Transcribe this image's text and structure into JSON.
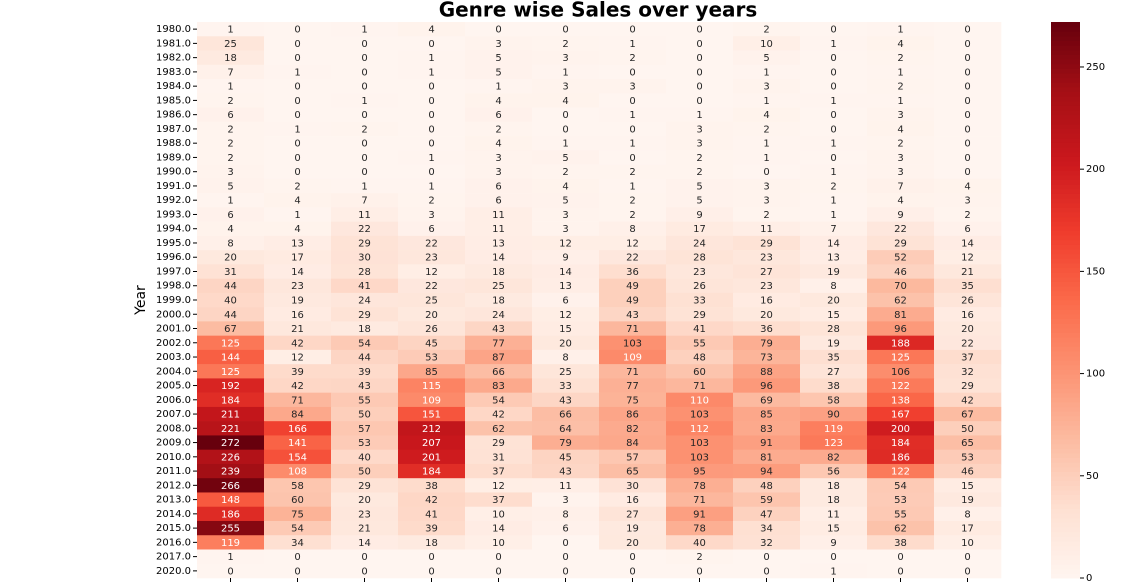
{
  "chart_data": {
    "type": "heatmap",
    "title": "Genre wise Sales over years",
    "ylabel": "Year",
    "categories": [
      null,
      null,
      null,
      null,
      null,
      null,
      null,
      null,
      null,
      null,
      null,
      null
    ],
    "rows": [
      "1980.0",
      "1981.0",
      "1982.0",
      "1983.0",
      "1984.0",
      "1985.0",
      "1986.0",
      "1987.0",
      "1988.0",
      "1989.0",
      "1990.0",
      "1991.0",
      "1992.0",
      "1993.0",
      "1994.0",
      "1995.0",
      "1996.0",
      "1997.0",
      "1998.0",
      "1999.0",
      "2000.0",
      "2001.0",
      "2002.0",
      "2003.0",
      "2004.0",
      "2005.0",
      "2006.0",
      "2007.0",
      "2008.0",
      "2009.0",
      "2010.0",
      "2011.0",
      "2012.0",
      "2013.0",
      "2014.0",
      "2015.0",
      "2016.0",
      "2017.0",
      "2020.0"
    ],
    "values": [
      [
        1,
        0,
        1,
        4,
        0,
        0,
        0,
        0,
        2,
        0,
        1,
        0
      ],
      [
        25,
        0,
        0,
        0,
        3,
        2,
        1,
        0,
        10,
        1,
        4,
        0
      ],
      [
        18,
        0,
        0,
        1,
        5,
        3,
        2,
        0,
        5,
        0,
        2,
        0
      ],
      [
        7,
        1,
        0,
        1,
        5,
        1,
        0,
        0,
        1,
        0,
        1,
        0
      ],
      [
        1,
        0,
        0,
        0,
        1,
        3,
        3,
        0,
        3,
        0,
        2,
        0
      ],
      [
        2,
        0,
        1,
        0,
        4,
        4,
        0,
        0,
        1,
        1,
        1,
        0
      ],
      [
        6,
        0,
        0,
        0,
        6,
        0,
        1,
        1,
        4,
        0,
        3,
        0
      ],
      [
        2,
        1,
        2,
        0,
        2,
        0,
        0,
        3,
        2,
        0,
        4,
        0
      ],
      [
        2,
        0,
        0,
        0,
        4,
        1,
        1,
        3,
        1,
        1,
        2,
        0
      ],
      [
        2,
        0,
        0,
        1,
        3,
        5,
        0,
        2,
        1,
        0,
        3,
        0
      ],
      [
        3,
        0,
        0,
        0,
        3,
        2,
        2,
        2,
        0,
        1,
        3,
        0
      ],
      [
        5,
        2,
        1,
        1,
        6,
        4,
        1,
        5,
        3,
        2,
        7,
        4
      ],
      [
        1,
        4,
        7,
        2,
        6,
        5,
        2,
        5,
        3,
        1,
        4,
        3
      ],
      [
        6,
        1,
        11,
        3,
        11,
        3,
        2,
        9,
        2,
        1,
        9,
        2
      ],
      [
        4,
        4,
        22,
        6,
        11,
        3,
        8,
        17,
        11,
        7,
        22,
        6
      ],
      [
        8,
        13,
        29,
        22,
        13,
        12,
        12,
        24,
        29,
        14,
        29,
        14
      ],
      [
        20,
        17,
        30,
        23,
        14,
        9,
        22,
        28,
        23,
        13,
        52,
        12
      ],
      [
        31,
        14,
        28,
        12,
        18,
        14,
        36,
        23,
        27,
        19,
        46,
        21
      ],
      [
        44,
        23,
        41,
        22,
        25,
        13,
        49,
        26,
        23,
        8,
        70,
        35
      ],
      [
        40,
        19,
        24,
        25,
        18,
        6,
        49,
        33,
        16,
        20,
        62,
        26
      ],
      [
        44,
        16,
        29,
        20,
        24,
        12,
        43,
        29,
        20,
        15,
        81,
        16
      ],
      [
        67,
        21,
        18,
        26,
        43,
        15,
        71,
        41,
        36,
        28,
        96,
        20
      ],
      [
        125,
        42,
        54,
        45,
        77,
        20,
        103,
        55,
        79,
        19,
        188,
        22
      ],
      [
        144,
        12,
        44,
        53,
        87,
        8,
        109,
        48,
        73,
        35,
        125,
        37
      ],
      [
        125,
        39,
        39,
        85,
        66,
        25,
        71,
        60,
        88,
        27,
        106,
        32
      ],
      [
        192,
        42,
        43,
        115,
        83,
        33,
        77,
        71,
        96,
        38,
        122,
        29
      ],
      [
        184,
        71,
        55,
        109,
        54,
        43,
        75,
        110,
        69,
        58,
        138,
        42
      ],
      [
        211,
        84,
        50,
        151,
        42,
        66,
        86,
        103,
        85,
        90,
        167,
        67
      ],
      [
        221,
        166,
        57,
        212,
        62,
        64,
        82,
        112,
        83,
        119,
        200,
        50
      ],
      [
        272,
        141,
        53,
        207,
        29,
        79,
        84,
        103,
        91,
        123,
        184,
        65
      ],
      [
        226,
        154,
        40,
        201,
        31,
        45,
        57,
        103,
        81,
        82,
        186,
        53
      ],
      [
        239,
        108,
        50,
        184,
        37,
        43,
        65,
        95,
        94,
        56,
        122,
        46
      ],
      [
        266,
        58,
        29,
        38,
        12,
        11,
        30,
        78,
        48,
        18,
        54,
        15
      ],
      [
        148,
        60,
        20,
        42,
        37,
        3,
        16,
        71,
        59,
        18,
        53,
        19
      ],
      [
        186,
        75,
        23,
        41,
        10,
        8,
        27,
        91,
        47,
        11,
        55,
        8
      ],
      [
        255,
        54,
        21,
        39,
        14,
        6,
        19,
        78,
        34,
        15,
        62,
        17
      ],
      [
        119,
        34,
        14,
        18,
        10,
        0,
        20,
        40,
        32,
        9,
        38,
        10
      ],
      [
        1,
        0,
        0,
        0,
        0,
        0,
        0,
        2,
        0,
        0,
        0,
        0
      ],
      [
        0,
        0,
        0,
        0,
        0,
        0,
        0,
        0,
        0,
        1,
        0,
        0
      ]
    ],
    "zlim": [
      0,
      272
    ],
    "zticks": [
      0,
      50,
      100,
      150,
      200,
      250
    ],
    "colormap": [
      "#fff5f0",
      "#fee0d2",
      "#fcbba1",
      "#fc9272",
      "#fb6a4a",
      "#ef3b2c",
      "#cb181d",
      "#a50f15",
      "#67000d"
    ]
  }
}
